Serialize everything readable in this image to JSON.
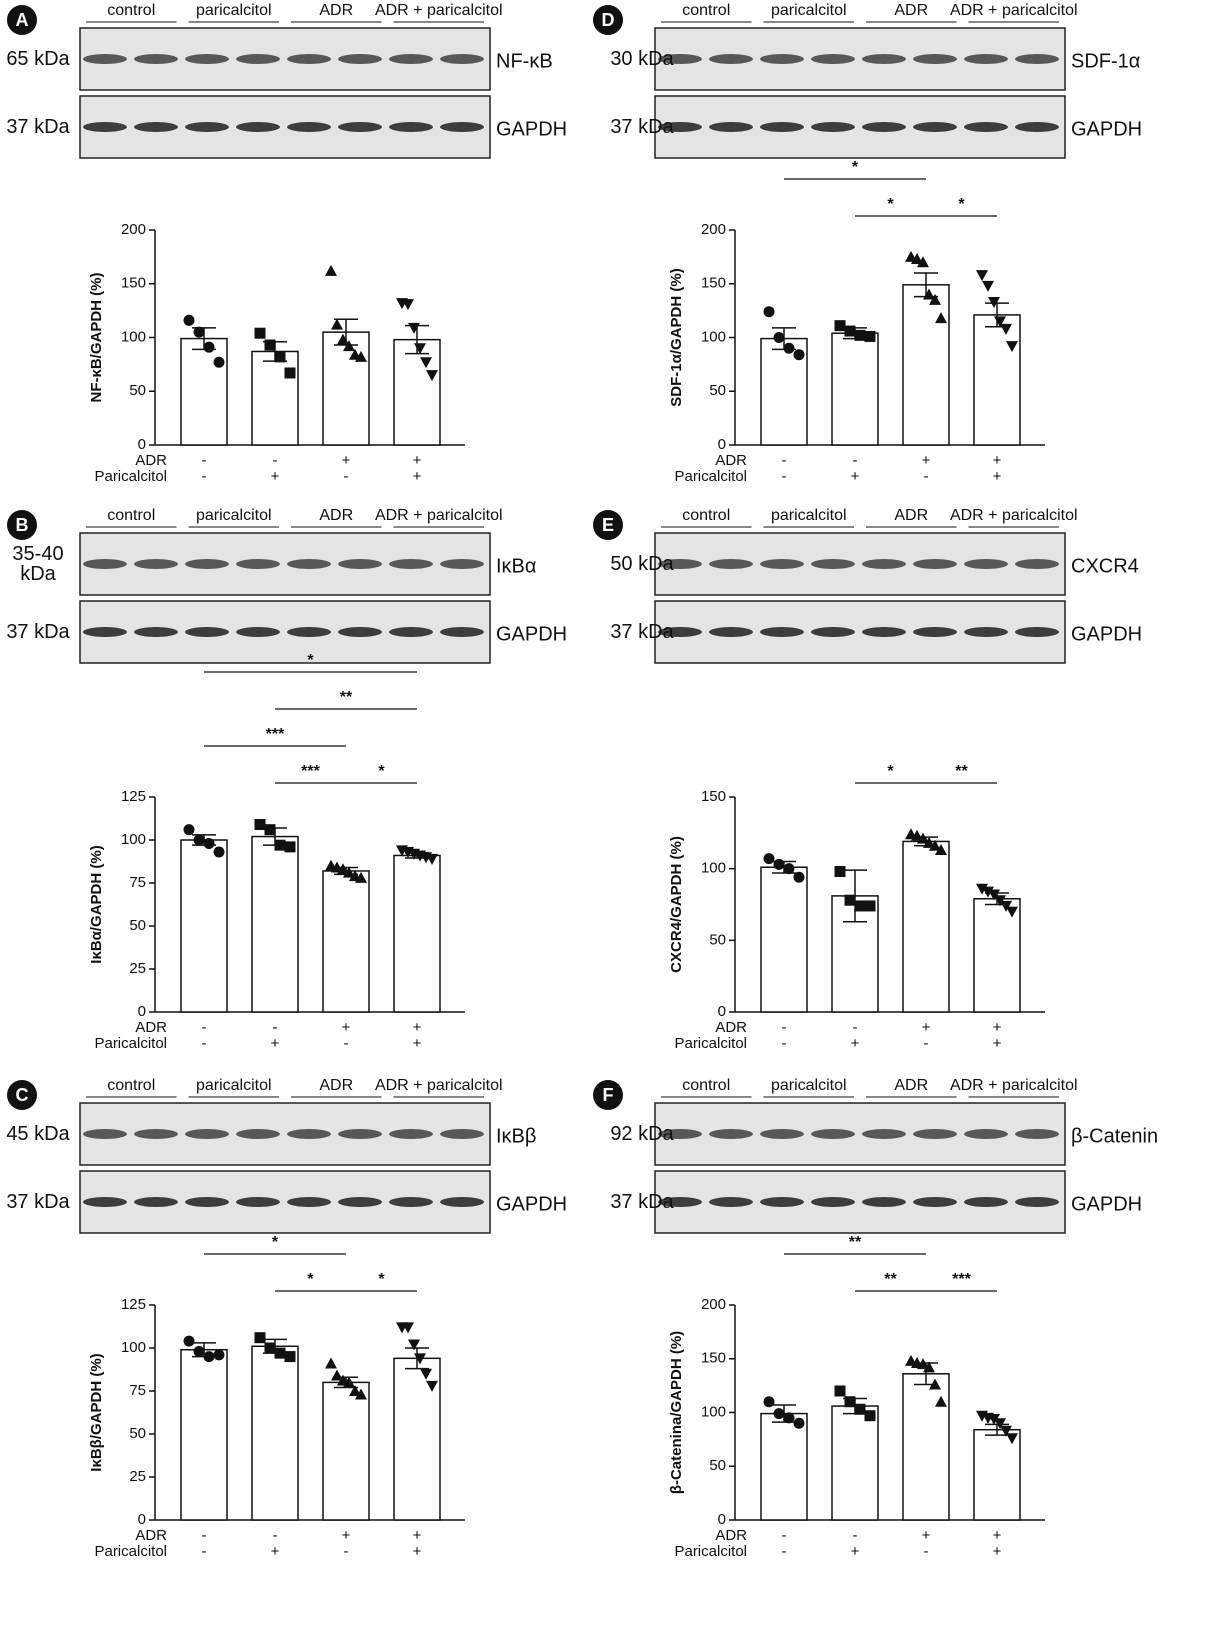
{
  "chart_data": [
    {
      "type": "bar",
      "panel": "A",
      "groups": [
        "control",
        "paricalcitol",
        "ADR",
        "ADR + paricalcitol"
      ],
      "blots": [
        {
          "size": "65 kDa",
          "protein": "NF-κB"
        },
        {
          "size": "37 kDa",
          "protein": "GAPDH"
        }
      ],
      "ylabel": "NF-κB/GAPDH (%)",
      "ylim": [
        0,
        200
      ],
      "yticks": [
        0,
        50,
        100,
        150,
        200
      ],
      "values": [
        99,
        87,
        105,
        98
      ],
      "errors": [
        10,
        9,
        12,
        13
      ],
      "points": [
        [
          116,
          105,
          91,
          77
        ],
        [
          104,
          93,
          82,
          67
        ],
        [
          162,
          112,
          98,
          92,
          84,
          82
        ],
        [
          132,
          131,
          109,
          90,
          77,
          65
        ]
      ],
      "treatments": [
        {
          "name": "ADR",
          "signs": [
            "-",
            "-",
            "+",
            "+"
          ]
        },
        {
          "name": "Paricalcitol",
          "signs": [
            "-",
            "+",
            "-",
            "+"
          ]
        }
      ],
      "significance": []
    },
    {
      "type": "bar",
      "panel": "B",
      "groups": [
        "control",
        "paricalcitol",
        "ADR",
        "ADR + paricalcitol"
      ],
      "blots": [
        {
          "size": "35-40 kDa",
          "protein": "IκBα"
        },
        {
          "size": "37 kDa",
          "protein": "GAPDH"
        }
      ],
      "ylabel": "IκBα/GAPDH (%)",
      "ylim": [
        0,
        125
      ],
      "yticks": [
        0,
        25,
        50,
        75,
        100,
        125
      ],
      "values": [
        100,
        102,
        82,
        91
      ],
      "errors": [
        3,
        5,
        2,
        1.5
      ],
      "points": [
        [
          106,
          100,
          98,
          93
        ],
        [
          109,
          106,
          97,
          96
        ],
        [
          85,
          84,
          83,
          81,
          79,
          78
        ],
        [
          94,
          93,
          92,
          91,
          90,
          89
        ]
      ],
      "treatments": [
        {
          "name": "ADR",
          "signs": [
            "-",
            "-",
            "+",
            "+"
          ]
        },
        {
          "name": "Paricalcitol",
          "signs": [
            "-",
            "+",
            "-",
            "+"
          ]
        }
      ],
      "significance": [
        {
          "from": 1,
          "to": 2,
          "label": "***"
        },
        {
          "from": 2,
          "to": 3,
          "label": "*"
        },
        {
          "from": 0,
          "to": 2,
          "label": "***"
        },
        {
          "from": 1,
          "to": 3,
          "label": "**"
        },
        {
          "from": 0,
          "to": 3,
          "label": "*"
        }
      ]
    },
    {
      "type": "bar",
      "panel": "C",
      "groups": [
        "control",
        "paricalcitol",
        "ADR",
        "ADR + paricalcitol"
      ],
      "blots": [
        {
          "size": "45 kDa",
          "protein": "IκBβ"
        },
        {
          "size": "37 kDa",
          "protein": "GAPDH"
        }
      ],
      "ylabel": "IκBβ/GAPDH (%)",
      "ylim": [
        0,
        125
      ],
      "yticks": [
        0,
        25,
        50,
        75,
        100,
        125
      ],
      "values": [
        99,
        101,
        80,
        94
      ],
      "errors": [
        4,
        4,
        3,
        6
      ],
      "points": [
        [
          104,
          98,
          95,
          96
        ],
        [
          106,
          100,
          97,
          95
        ],
        [
          91,
          84,
          81,
          80,
          75,
          73
        ],
        [
          112,
          112,
          102,
          94,
          85,
          78
        ]
      ],
      "treatments": [
        {
          "name": "ADR",
          "signs": [
            "-",
            "-",
            "+",
            "+"
          ]
        },
        {
          "name": "Paricalcitol",
          "signs": [
            "-",
            "+",
            "-",
            "+"
          ]
        }
      ],
      "significance": [
        {
          "from": 1,
          "to": 2,
          "label": "*"
        },
        {
          "from": 2,
          "to": 3,
          "label": "*"
        },
        {
          "from": 0,
          "to": 2,
          "label": "*"
        }
      ]
    },
    {
      "type": "bar",
      "panel": "D",
      "groups": [
        "control",
        "paricalcitol",
        "ADR",
        "ADR + paricalcitol"
      ],
      "blots": [
        {
          "size": "30 kDa",
          "protein": "SDF-1α"
        },
        {
          "size": "37 kDa",
          "protein": "GAPDH"
        }
      ],
      "ylabel": "SDF-1α/GAPDH (%)",
      "ylim": [
        0,
        200
      ],
      "yticks": [
        0,
        50,
        100,
        150,
        200
      ],
      "values": [
        99,
        104,
        149,
        121
      ],
      "errors": [
        10,
        5,
        11,
        11
      ],
      "points": [
        [
          124,
          100,
          90,
          84
        ],
        [
          111,
          106,
          102,
          101
        ],
        [
          175,
          173,
          170,
          140,
          135,
          118
        ],
        [
          158,
          148,
          133,
          115,
          108,
          92
        ]
      ],
      "treatments": [
        {
          "name": "ADR",
          "signs": [
            "-",
            "-",
            "+",
            "+"
          ]
        },
        {
          "name": "Paricalcitol",
          "signs": [
            "-",
            "+",
            "-",
            "+"
          ]
        }
      ],
      "significance": [
        {
          "from": 1,
          "to": 2,
          "label": "*"
        },
        {
          "from": 2,
          "to": 3,
          "label": "*"
        },
        {
          "from": 0,
          "to": 2,
          "label": "*"
        }
      ]
    },
    {
      "type": "bar",
      "panel": "E",
      "groups": [
        "control",
        "paricalcitol",
        "ADR",
        "ADR + paricalcitol"
      ],
      "blots": [
        {
          "size": "50 kDa",
          "protein": "CXCR4"
        },
        {
          "size": "37 kDa",
          "protein": "GAPDH"
        }
      ],
      "ylabel": "CXCR4/GAPDH (%)",
      "ylim": [
        0,
        150
      ],
      "yticks": [
        0,
        50,
        100,
        150
      ],
      "values": [
        101,
        81,
        119,
        79
      ],
      "errors": [
        4,
        18,
        3,
        4
      ],
      "points": [
        [
          107,
          103,
          100,
          94
        ],
        [
          98,
          78,
          74,
          74
        ],
        [
          124,
          123,
          121,
          118,
          116,
          113
        ],
        [
          86,
          84,
          82,
          78,
          74,
          70
        ]
      ],
      "treatments": [
        {
          "name": "ADR",
          "signs": [
            "-",
            "-",
            "+",
            "+"
          ]
        },
        {
          "name": "Paricalcitol",
          "signs": [
            "-",
            "+",
            "-",
            "+"
          ]
        }
      ],
      "significance": [
        {
          "from": 1,
          "to": 2,
          "label": "*"
        },
        {
          "from": 2,
          "to": 3,
          "label": "**"
        }
      ]
    },
    {
      "type": "bar",
      "panel": "F",
      "groups": [
        "control",
        "paricalcitol",
        "ADR",
        "ADR + paricalcitol"
      ],
      "blots": [
        {
          "size": "92 kDa",
          "protein": "β-Catenin"
        },
        {
          "size": "37 kDa",
          "protein": "GAPDH"
        }
      ],
      "ylabel": "β-Catenina/GAPDH (%)",
      "ylim": [
        0,
        200
      ],
      "yticks": [
        0,
        50,
        100,
        150,
        200
      ],
      "values": [
        99,
        106,
        136,
        84
      ],
      "errors": [
        8,
        7,
        10,
        5
      ],
      "points": [
        [
          110,
          99,
          95,
          90
        ],
        [
          120,
          110,
          103,
          97
        ],
        [
          148,
          146,
          145,
          142,
          126,
          110
        ],
        [
          97,
          95,
          94,
          90,
          83,
          76
        ]
      ],
      "treatments": [
        {
          "name": "ADR",
          "signs": [
            "-",
            "-",
            "+",
            "+"
          ]
        },
        {
          "name": "Paricalcitol",
          "signs": [
            "-",
            "+",
            "-",
            "+"
          ]
        }
      ],
      "significance": [
        {
          "from": 1,
          "to": 2,
          "label": "**"
        },
        {
          "from": 2,
          "to": 3,
          "label": "***"
        },
        {
          "from": 0,
          "to": 2,
          "label": "**"
        }
      ]
    }
  ]
}
